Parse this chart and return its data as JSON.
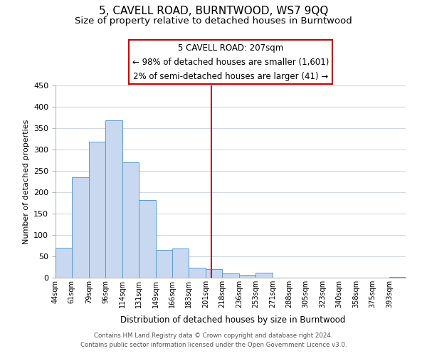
{
  "title": "5, CAVELL ROAD, BURNTWOOD, WS7 9QQ",
  "subtitle": "Size of property relative to detached houses in Burntwood",
  "xlabel": "Distribution of detached houses by size in Burntwood",
  "ylabel": "Number of detached properties",
  "footer_line1": "Contains HM Land Registry data © Crown copyright and database right 2024.",
  "footer_line2": "Contains public sector information licensed under the Open Government Licence v3.0.",
  "annotation_title": "5 CAVELL ROAD: 207sqm",
  "annotation_line1": "← 98% of detached houses are smaller (1,601)",
  "annotation_line2": "2% of semi-detached houses are larger (41) →",
  "bar_color": "#c8d8f0",
  "bar_edge_color": "#5b9bd5",
  "vline_x": 207,
  "vline_color": "#cc0000",
  "categories": [
    "44sqm",
    "61sqm",
    "79sqm",
    "96sqm",
    "114sqm",
    "131sqm",
    "149sqm",
    "166sqm",
    "183sqm",
    "201sqm",
    "218sqm",
    "236sqm",
    "253sqm",
    "271sqm",
    "288sqm",
    "305sqm",
    "323sqm",
    "340sqm",
    "358sqm",
    "375sqm",
    "393sqm"
  ],
  "bin_edges": [
    44,
    61,
    79,
    96,
    114,
    131,
    149,
    166,
    183,
    201,
    218,
    236,
    253,
    271,
    288,
    305,
    323,
    340,
    358,
    375,
    393,
    410
  ],
  "values": [
    70,
    235,
    318,
    368,
    270,
    182,
    65,
    68,
    23,
    20,
    10,
    6,
    11,
    0,
    0,
    0,
    0,
    0,
    0,
    0,
    2
  ],
  "ylim": [
    0,
    450
  ],
  "yticks": [
    0,
    50,
    100,
    150,
    200,
    250,
    300,
    350,
    400,
    450
  ],
  "background_color": "#ffffff",
  "grid_color": "#d0d8e8",
  "title_fontsize": 11,
  "subtitle_fontsize": 9.5,
  "annotation_box_color": "#ffffff",
  "annotation_box_edge": "#cc0000"
}
